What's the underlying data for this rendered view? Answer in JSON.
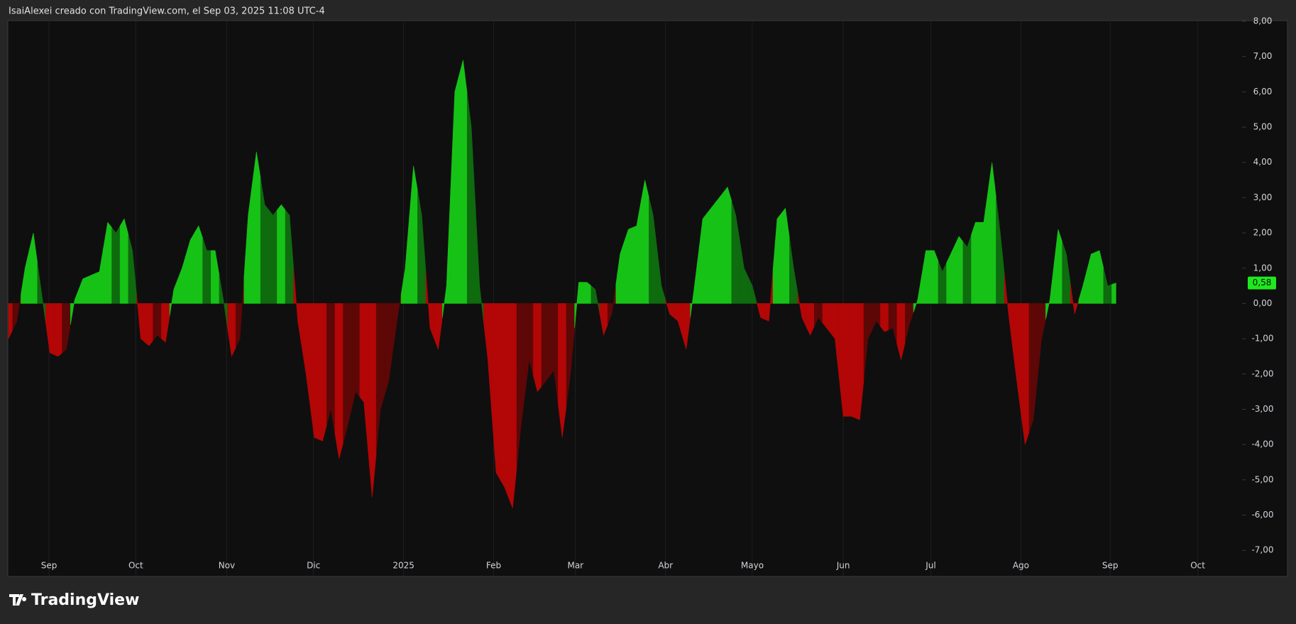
{
  "header": {
    "title": "IsaiAlexei creado con TradingView.com, el Sep 03, 2025 11:08 UTC-4"
  },
  "footer": {
    "brand": "TradingView"
  },
  "chart_data": {
    "type": "area",
    "colors": {
      "positive_rising": "#17c217",
      "positive_falling": "#0e6b0e",
      "negative_falling": "#b30606",
      "negative_rising": "#5e0707"
    },
    "values": [
      -1.0,
      -0.5,
      1.0,
      2.0,
      0.3,
      -1.4,
      -1.5,
      -1.3,
      0.1,
      0.7,
      0.8,
      0.9,
      2.3,
      2.0,
      2.4,
      1.5,
      -1.0,
      -1.2,
      -0.9,
      -1.1,
      0.4,
      1.0,
      1.8,
      2.2,
      1.5,
      1.5,
      0.1,
      -1.5,
      -1.0,
      2.5,
      4.3,
      2.8,
      2.5,
      2.8,
      2.5,
      -0.5,
      -2.0,
      -3.8,
      -3.9,
      -3.0,
      -4.4,
      -3.5,
      -2.5,
      -2.8,
      -5.5,
      -3.0,
      -2.2,
      -0.5,
      1.0,
      3.9,
      2.5,
      -0.7,
      -1.3,
      0.5,
      6.0,
      6.9,
      5.0,
      0.5,
      -1.6,
      -4.8,
      -5.2,
      -5.8,
      -3.5,
      -1.6,
      -2.5,
      -2.2,
      -1.9,
      -3.8,
      -2.0,
      0.6,
      0.6,
      0.4,
      -0.9,
      -0.3,
      1.4,
      2.1,
      2.2,
      3.5,
      2.5,
      0.5,
      -0.3,
      -0.5,
      -1.3,
      0.5,
      2.4,
      2.7,
      3.0,
      3.3,
      2.5,
      1.0,
      0.5,
      -0.4,
      -0.5,
      2.4,
      2.7,
      1.0,
      -0.4,
      -0.9,
      -0.4,
      -0.7,
      -1.0,
      -3.2,
      -3.2,
      -3.3,
      -1.0,
      -0.5,
      -0.8,
      -0.7,
      -1.6,
      -0.6,
      0.1,
      1.5,
      1.5,
      0.9,
      1.4,
      1.9,
      1.6,
      2.3,
      2.3,
      4.0,
      2.0,
      -0.3,
      -2.2,
      -4.0,
      -3.3,
      -1.0,
      0.1,
      2.1,
      1.4,
      -0.3,
      0.5,
      1.4,
      1.5,
      0.5,
      0.58
    ],
    "last_value_label": "0,58",
    "xlim": [
      0,
      149
    ],
    "xticks": [
      {
        "value": 4.9,
        "label": "Sep"
      },
      {
        "value": 15.4,
        "label": "Oct"
      },
      {
        "value": 26.4,
        "label": "Nov"
      },
      {
        "value": 36.9,
        "label": "Dic"
      },
      {
        "value": 47.8,
        "label": "2025"
      },
      {
        "value": 58.7,
        "label": "Feb"
      },
      {
        "value": 68.6,
        "label": "Mar"
      },
      {
        "value": 79.5,
        "label": "Abr"
      },
      {
        "value": 90,
        "label": "Mayo"
      },
      {
        "value": 101,
        "label": "Jun"
      },
      {
        "value": 111.6,
        "label": "Jul"
      },
      {
        "value": 122.5,
        "label": "Ago"
      },
      {
        "value": 133.3,
        "label": "Sep"
      },
      {
        "value": 143.9,
        "label": "Oct"
      }
    ],
    "ylim": [
      -7.74,
      8.02
    ],
    "yticks": [
      {
        "value": 8,
        "label": "8,00"
      },
      {
        "value": 7,
        "label": "7,00"
      },
      {
        "value": 6,
        "label": "6,00"
      },
      {
        "value": 5,
        "label": "5,00"
      },
      {
        "value": 4,
        "label": "4,00"
      },
      {
        "value": 3,
        "label": "3,00"
      },
      {
        "value": 2,
        "label": "2,00"
      },
      {
        "value": 1,
        "label": "1,00"
      },
      {
        "value": 0,
        "label": "0,00"
      },
      {
        "value": -1,
        "label": "-1,00"
      },
      {
        "value": -2,
        "label": "-2,00"
      },
      {
        "value": -3,
        "label": "-3,00"
      },
      {
        "value": -4,
        "label": "-4,00"
      },
      {
        "value": -5,
        "label": "-5,00"
      },
      {
        "value": -6,
        "label": "-6,00"
      },
      {
        "value": -7,
        "label": "-7,00"
      }
    ],
    "grid": true
  }
}
